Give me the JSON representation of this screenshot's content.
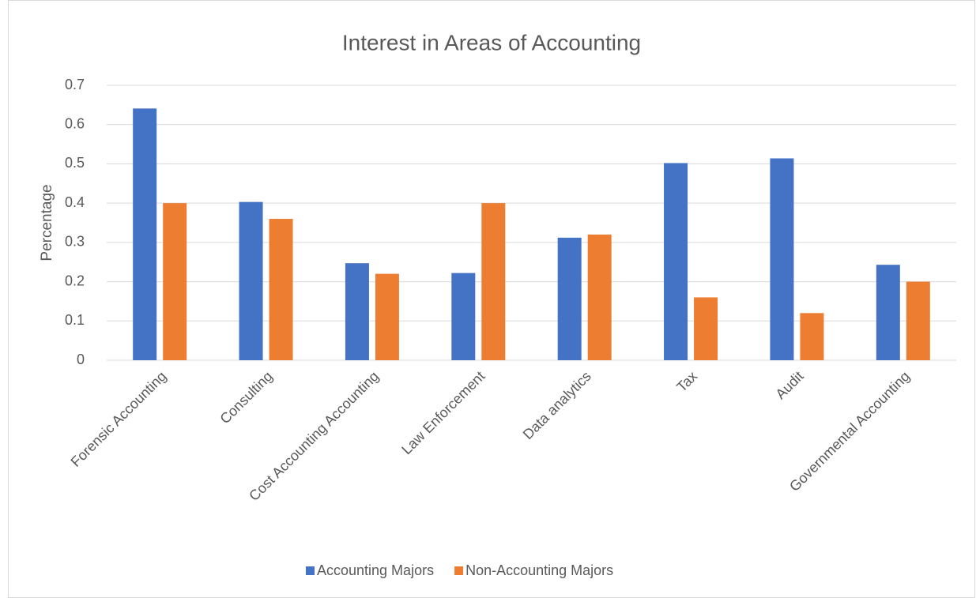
{
  "chart_data": {
    "type": "bar",
    "title": "Interest in Areas of Accounting",
    "y_label": "Percentage",
    "categories": [
      "Forensic Accounting",
      "Consulting",
      "Cost Accounting Accounting",
      "Law Enforcement",
      "Data analytics",
      "Tax",
      "Audit",
      "Governmental Accounting"
    ],
    "series": [
      {
        "name": "Accounting Majors",
        "color": "#4472c4",
        "values": [
          0.641,
          0.403,
          0.247,
          0.222,
          0.312,
          0.502,
          0.514,
          0.243
        ]
      },
      {
        "name": "Non-Accounting Majors",
        "color": "#ed7d31",
        "values": [
          0.4,
          0.36,
          0.22,
          0.4,
          0.32,
          0.16,
          0.12,
          0.2
        ]
      }
    ],
    "ylim": [
      0,
      0.7
    ],
    "yticks": [
      0,
      0.1,
      0.2,
      0.3,
      0.4,
      0.5,
      0.6,
      0.7
    ],
    "grid": true,
    "legend": "bottom"
  }
}
